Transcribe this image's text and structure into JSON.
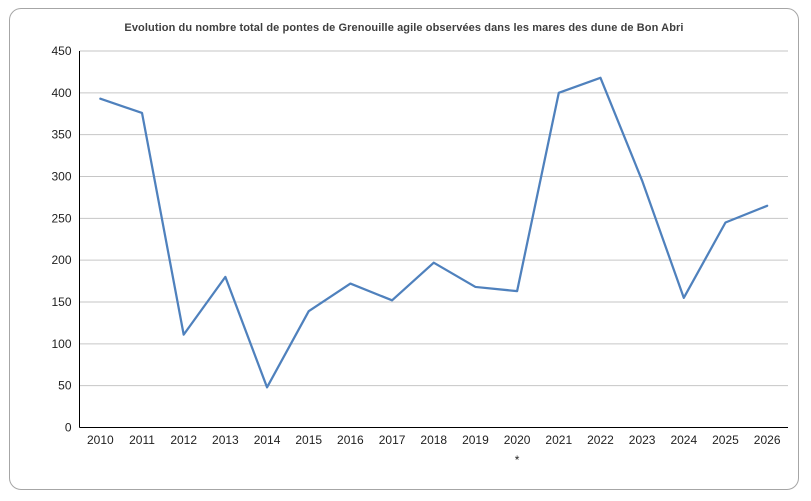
{
  "chart": {
    "frame_border_color": "#a6a6a6",
    "background_color": "#ffffff"
  },
  "chart_data": {
    "type": "line",
    "title": "Evolution du nombre total de pontes de Grenouille agile observées dans les mares des dune de Bon Abri",
    "categories": [
      "2010",
      "2011",
      "2012",
      "2013",
      "2014",
      "2015",
      "2016",
      "2017",
      "2018",
      "2019",
      "2020",
      "2021",
      "2022",
      "2023",
      "2024",
      "2025",
      "2026"
    ],
    "values": [
      393,
      376,
      111,
      180,
      48,
      139,
      172,
      152,
      197,
      168,
      163,
      400,
      418,
      295,
      155,
      245,
      265
    ],
    "xlabel": "",
    "ylabel": "",
    "ylim": [
      0,
      450
    ],
    "ytick_step": 50,
    "ytick_labels": [
      "0",
      "50",
      "100",
      "150",
      "200",
      "250",
      "300",
      "350",
      "400",
      "450"
    ],
    "grid": "horizontal",
    "legend": "none",
    "line_color": "#4F81BD",
    "gridline_color": "#c6c6c6",
    "axis_color": "#000000",
    "tick_label_color": "#1f1f1f",
    "title_color": "#3f3f3f",
    "annotations": [
      {
        "text": "*",
        "category": "2020",
        "position": "below-x-axis-label"
      }
    ]
  }
}
